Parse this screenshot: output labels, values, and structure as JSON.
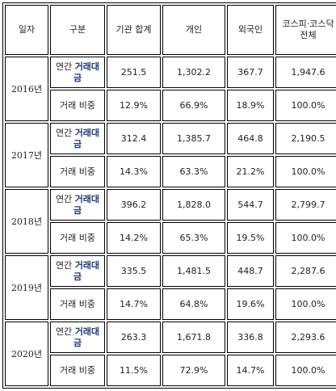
{
  "headers": [
    "일자",
    "구분",
    "기관 합계",
    "개인",
    "외국인",
    "코스피·코스닥",
    "전체"
  ],
  "label_amount_prefix": "연간 ",
  "label_amount_bold_1": "거래대",
  "label_amount_bold_2": "금",
  "label_ratio": "거래 비중",
  "rows": [
    {
      "year": "2016년",
      "amount": [
        "251.5",
        "1,302.2",
        "367.7",
        "1,947.6"
      ],
      "ratio": [
        "12.9%",
        "66.9%",
        "18.9%",
        "100.0%"
      ]
    },
    {
      "year": "2017년",
      "amount": [
        "312.4",
        "1,385.7",
        "464.8",
        "2,190.5"
      ],
      "ratio": [
        "14.3%",
        "63.3%",
        "21.2%",
        "100.0%"
      ]
    },
    {
      "year": "2018년",
      "amount": [
        "396.2",
        "1,828.0",
        "544.7",
        "2,799.7"
      ],
      "ratio": [
        "14.2%",
        "65.3%",
        "19.5%",
        "100.0%"
      ]
    },
    {
      "year": "2019년",
      "amount": [
        "335.5",
        "1,481.5",
        "448.7",
        "2,287.6"
      ],
      "ratio": [
        "14.7%",
        "64.8%",
        "19.6%",
        "100.0%"
      ]
    },
    {
      "year": "2020년",
      "amount": [
        "263.3",
        "1,671.8",
        "336.8",
        "2,293.6"
      ],
      "ratio": [
        "11.5%",
        "72.9%",
        "14.7%",
        "100.0%"
      ]
    }
  ]
}
